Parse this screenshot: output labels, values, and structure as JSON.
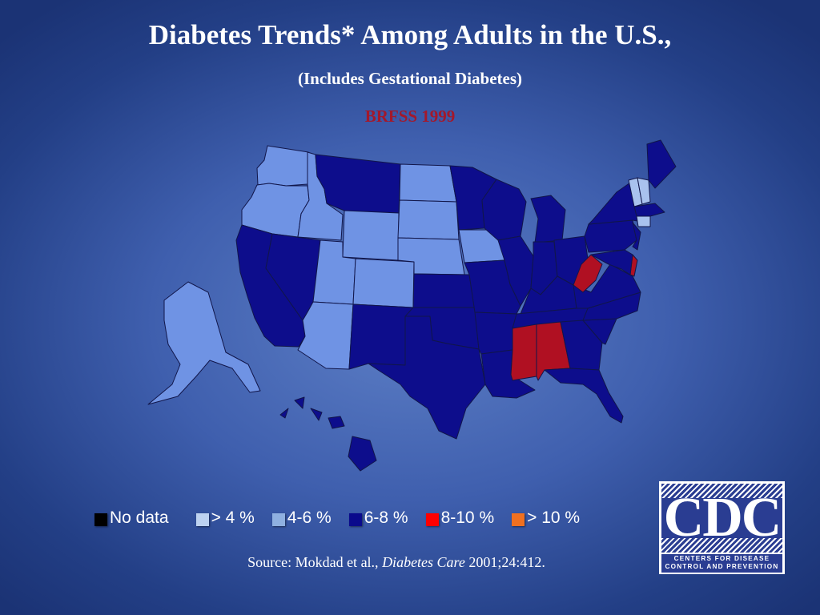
{
  "title": "Diabetes Trends* Among Adults in the U.S.,",
  "subtitle": "(Includes Gestational Diabetes)",
  "survey": {
    "label": "BRFSS 1999",
    "color": "#a3182b"
  },
  "legend": [
    {
      "label": "No data",
      "color": "#000000"
    },
    {
      "label": "> 4 %",
      "color": "#bdd2f0"
    },
    {
      "label": "4-6 %",
      "color": "#8fb0e0"
    },
    {
      "label": "6-8 %",
      "color": "#0a0a8c"
    },
    {
      "label": "8-10 %",
      "color": "#ff0000"
    },
    {
      "label": "> 10 %",
      "color": "#f07020"
    }
  ],
  "map_fill_colors": {
    "light": "#6f93e4",
    "lightest": "#a9c2ee",
    "dark": "#0d0d8c",
    "red": "#b01022"
  },
  "categories": {
    "4-6": [
      "WA",
      "OR",
      "ID",
      "WY",
      "ND",
      "SD",
      "NE",
      "IA",
      "UT",
      "CO",
      "AZ",
      "AK",
      "NH",
      "VT",
      "CT"
    ],
    "6-8": [
      "CA",
      "NV",
      "MT",
      "MN",
      "WI",
      "MI",
      "IL",
      "IN",
      "OH",
      "KS",
      "MO",
      "KY",
      "TN",
      "OK",
      "TX",
      "NM",
      "AR",
      "LA",
      "GA",
      "FL",
      "SC",
      "NC",
      "VA",
      "PA",
      "NY",
      "NJ",
      "MD",
      "ME",
      "MA",
      "HI"
    ],
    "8-10": [
      "WV",
      "MS",
      "AL",
      "DE"
    ]
  },
  "source": {
    "prefix": "Source: Mokdad et al., ",
    "journal": "Diabetes Care",
    "citation": " 2001;24:412."
  },
  "logo": {
    "letters": "CDC",
    "line1": "CENTERS FOR DISEASE",
    "line2": "CONTROL AND PREVENTION"
  }
}
